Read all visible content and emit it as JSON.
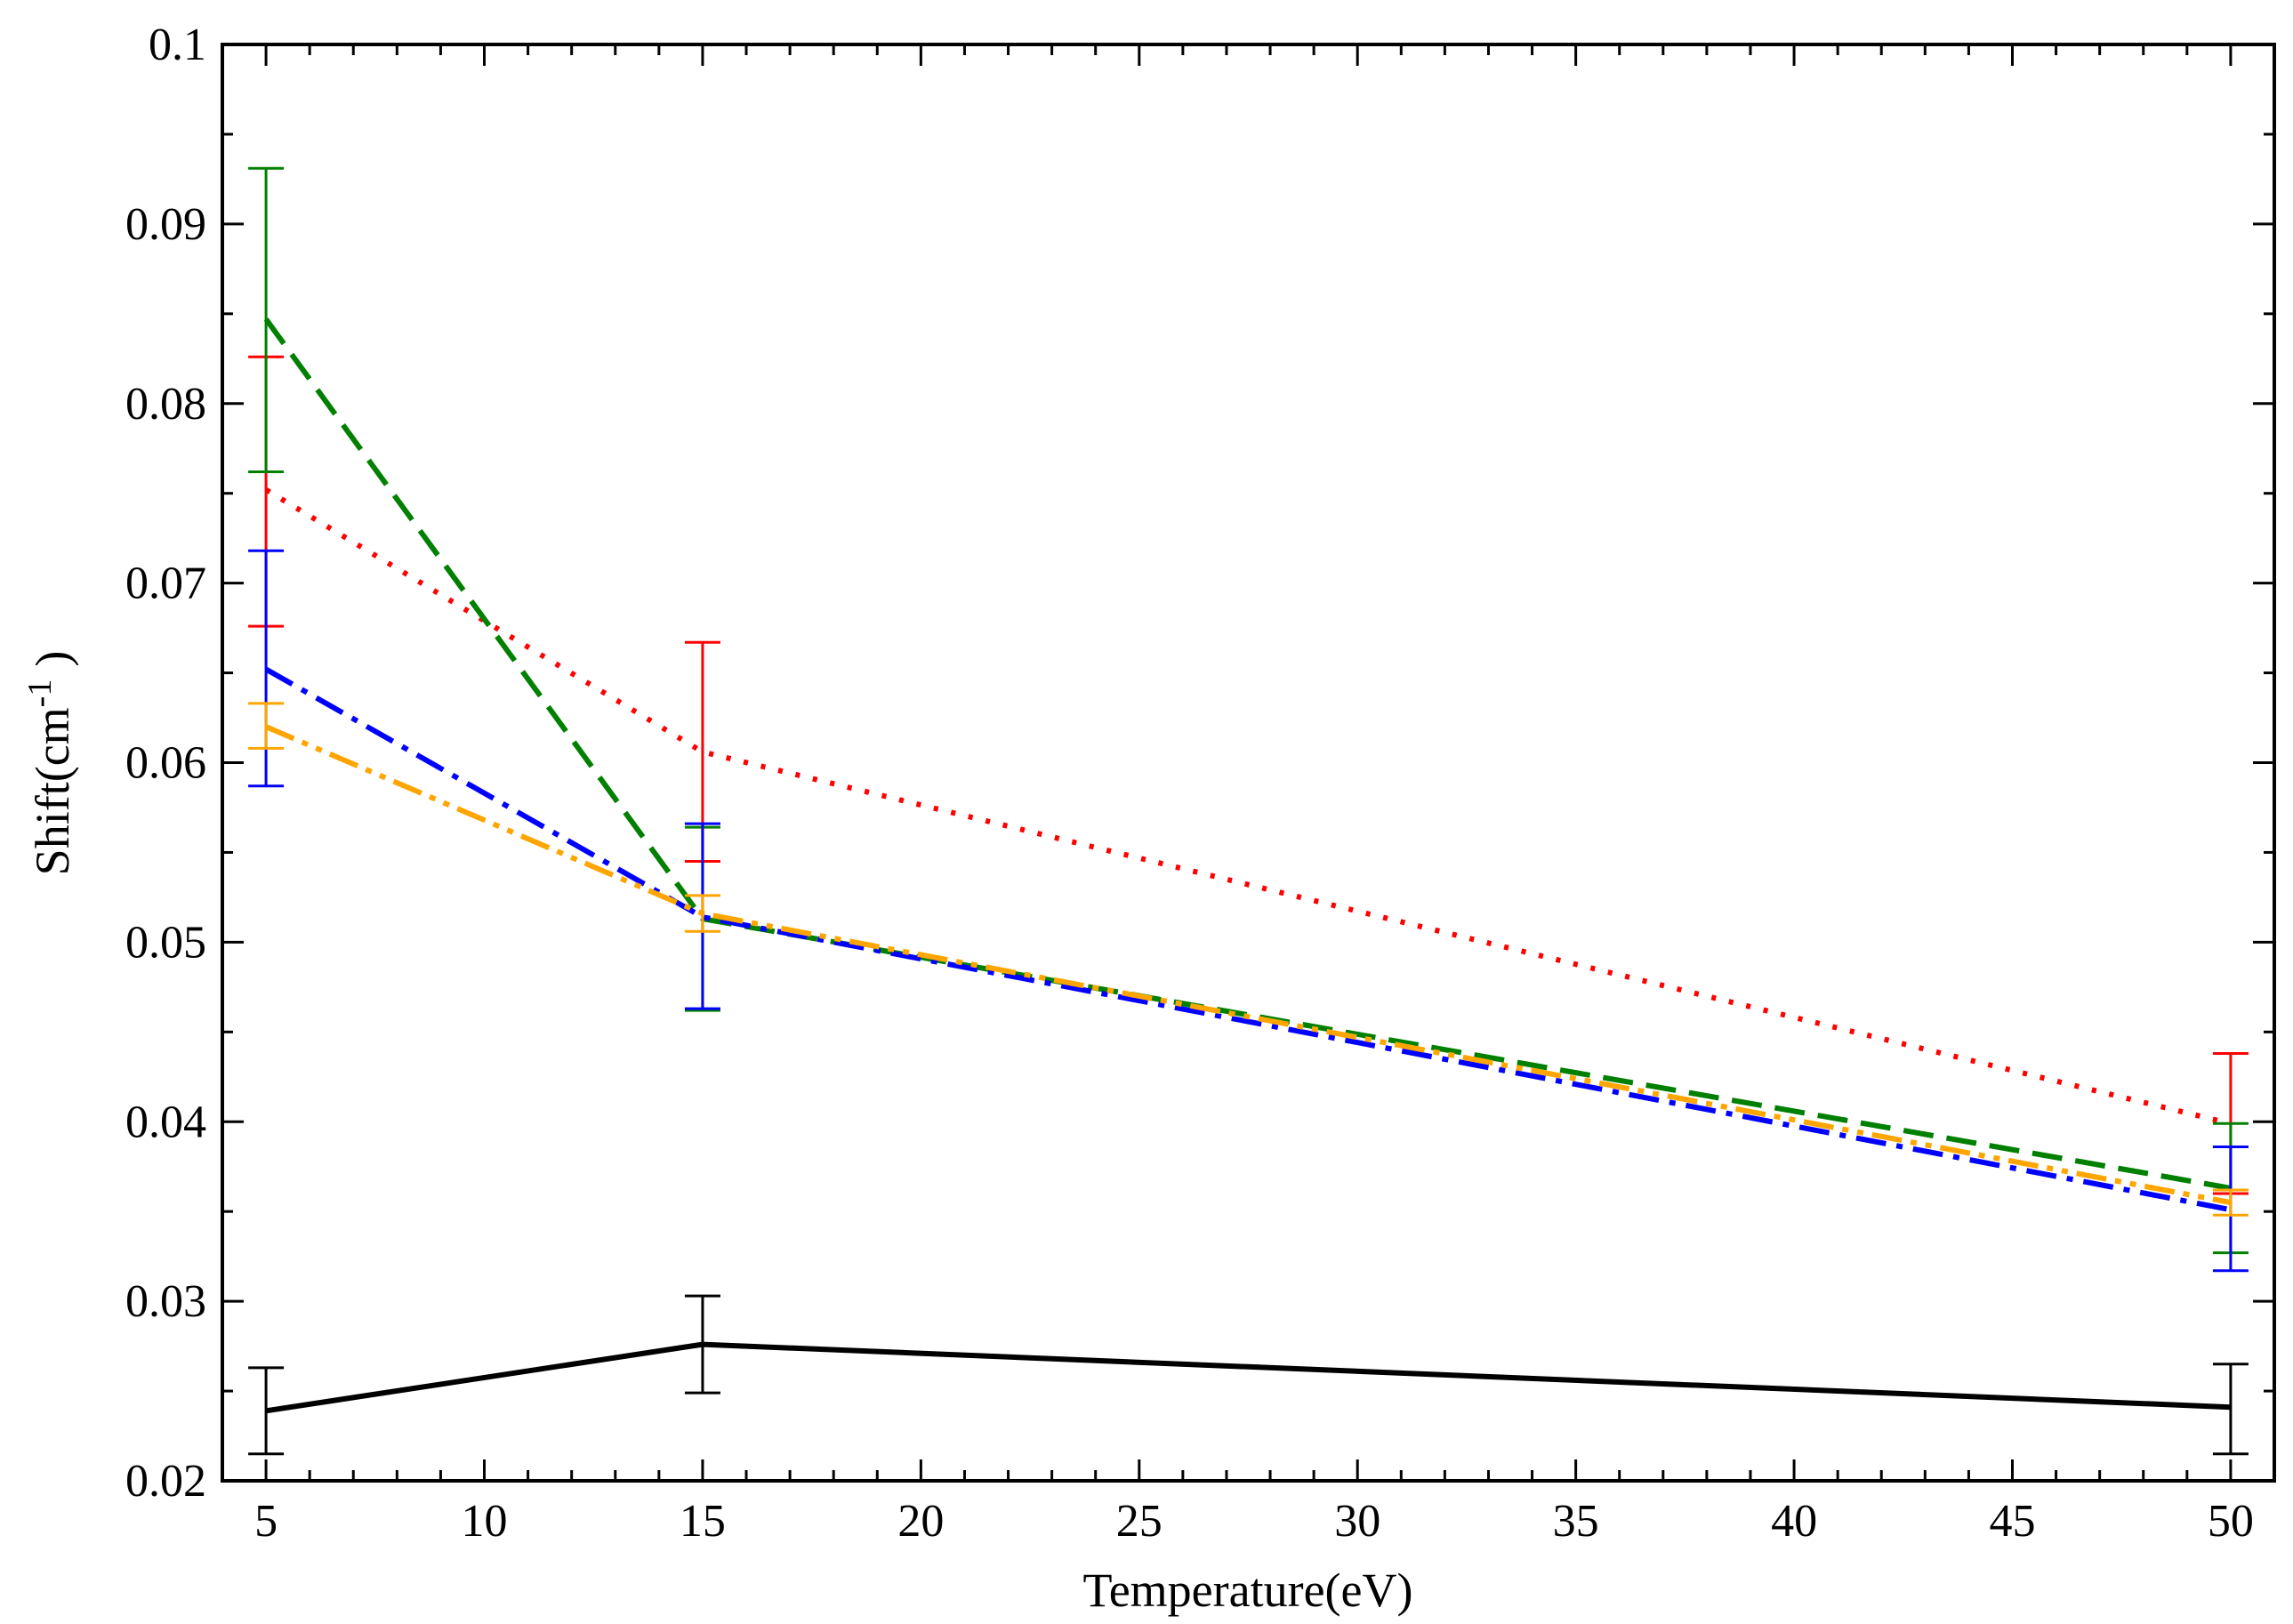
{
  "chart_data": {
    "type": "line",
    "xlabel": "Temperature(eV)",
    "ylabel": {
      "base": "Shift(cm",
      "sup": "-1",
      "tail": ")"
    },
    "xlim": [
      4,
      51
    ],
    "ylim": [
      0.02,
      0.1
    ],
    "x_ticks": [
      5,
      10,
      15,
      20,
      25,
      30,
      35,
      40,
      45,
      50
    ],
    "x_tick_labels": [
      "5",
      "10",
      "15",
      "20",
      "25",
      "30",
      "35",
      "40",
      "45",
      "50"
    ],
    "y_ticks": [
      0.02,
      0.03,
      0.04,
      0.05,
      0.06,
      0.07,
      0.08,
      0.09,
      0.1
    ],
    "y_tick_labels": [
      "0.02",
      "0.03",
      "0.04",
      "0.05",
      "0.06",
      "0.07",
      "0.08",
      "0.09",
      "0.1"
    ],
    "x_minor_ticks": [
      6,
      7,
      8,
      9,
      11,
      12,
      13,
      14,
      16,
      17,
      18,
      19,
      21,
      22,
      23,
      24,
      26,
      27,
      28,
      29,
      31,
      32,
      33,
      34,
      36,
      37,
      38,
      39,
      41,
      42,
      43,
      44,
      46,
      47,
      48,
      49
    ],
    "y_minor_ticks": [
      0.025,
      0.035,
      0.045,
      0.055,
      0.065,
      0.075,
      0.085,
      0.095
    ],
    "grid": false,
    "series": [
      {
        "color": "#000000",
        "style": "solid",
        "x": [
          5,
          15,
          50
        ],
        "y": [
          0.0239,
          0.0276,
          0.0241
        ],
        "err_low": [
          0.0215,
          0.0249,
          0.0215
        ],
        "err_high": [
          0.0263,
          0.0303,
          0.0265
        ]
      },
      {
        "color": "#ff0000",
        "style": "dotted",
        "x": [
          5,
          15,
          50
        ],
        "y": [
          0.0752,
          0.0606,
          0.0399
        ],
        "err_low": [
          0.0676,
          0.0545,
          0.036
        ],
        "err_high": [
          0.0826,
          0.0667,
          0.0438
        ]
      },
      {
        "color": "#008000",
        "style": "dashed",
        "x": [
          5,
          15,
          50
        ],
        "y": [
          0.0847,
          0.0513,
          0.0363
        ],
        "err_low": [
          0.0762,
          0.0462,
          0.0327
        ],
        "err_high": [
          0.0931,
          0.0564,
          0.0399
        ]
      },
      {
        "color": "#0000ff",
        "style": "dashdot",
        "x": [
          5,
          15,
          50
        ],
        "y": [
          0.0652,
          0.0514,
          0.0351
        ],
        "err_low": [
          0.0587,
          0.0463,
          0.0317
        ],
        "err_high": [
          0.0718,
          0.0566,
          0.0386
        ]
      },
      {
        "color": "#ffa500",
        "style": "dashdotdot",
        "x": [
          5,
          15,
          50
        ],
        "y": [
          0.062,
          0.0516,
          0.0355
        ],
        "err_low": [
          0.0608,
          0.0506,
          0.0348
        ],
        "err_high": [
          0.0633,
          0.0526,
          0.0362
        ]
      }
    ]
  }
}
